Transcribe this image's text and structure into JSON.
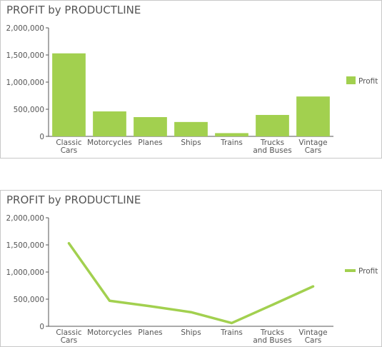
{
  "colors": {
    "series": "#a2d04f",
    "axis": "#555555",
    "tick": "#555555"
  },
  "chart_data": [
    {
      "type": "bar",
      "title": "PROFIT by PRODUCTLINE",
      "categories": [
        [
          "Classic",
          "Cars"
        ],
        [
          "Motorcycles"
        ],
        [
          "Planes"
        ],
        [
          "Ships"
        ],
        [
          "Trains"
        ],
        [
          "Trucks",
          "and Buses"
        ],
        [
          "Vintage",
          "Cars"
        ]
      ],
      "series": [
        {
          "name": "Profit",
          "values": [
            1530000,
            460000,
            355000,
            265000,
            60000,
            395000,
            735000
          ]
        }
      ],
      "ylim": [
        0,
        2000000
      ],
      "yticks": [
        "0",
        "500,000",
        "1,000,000",
        "1,500,000",
        "2,000,000"
      ],
      "grid": false,
      "legend": "right"
    },
    {
      "type": "line",
      "title": "PROFIT by PRODUCTLINE",
      "categories": [
        [
          "Classic",
          "Cars"
        ],
        [
          "Motorcycles"
        ],
        [
          "Planes"
        ],
        [
          "Ships"
        ],
        [
          "Trains"
        ],
        [
          "Trucks",
          "and Buses"
        ],
        [
          "Vintage",
          "Cars"
        ]
      ],
      "series": [
        {
          "name": "Profit",
          "values": [
            1530000,
            470000,
            370000,
            260000,
            60000,
            395000,
            735000
          ]
        }
      ],
      "ylim": [
        0,
        2000000
      ],
      "yticks": [
        "0",
        "500,000",
        "1,000,000",
        "1,500,000",
        "2,000,000"
      ],
      "grid": false,
      "legend": "right"
    }
  ]
}
